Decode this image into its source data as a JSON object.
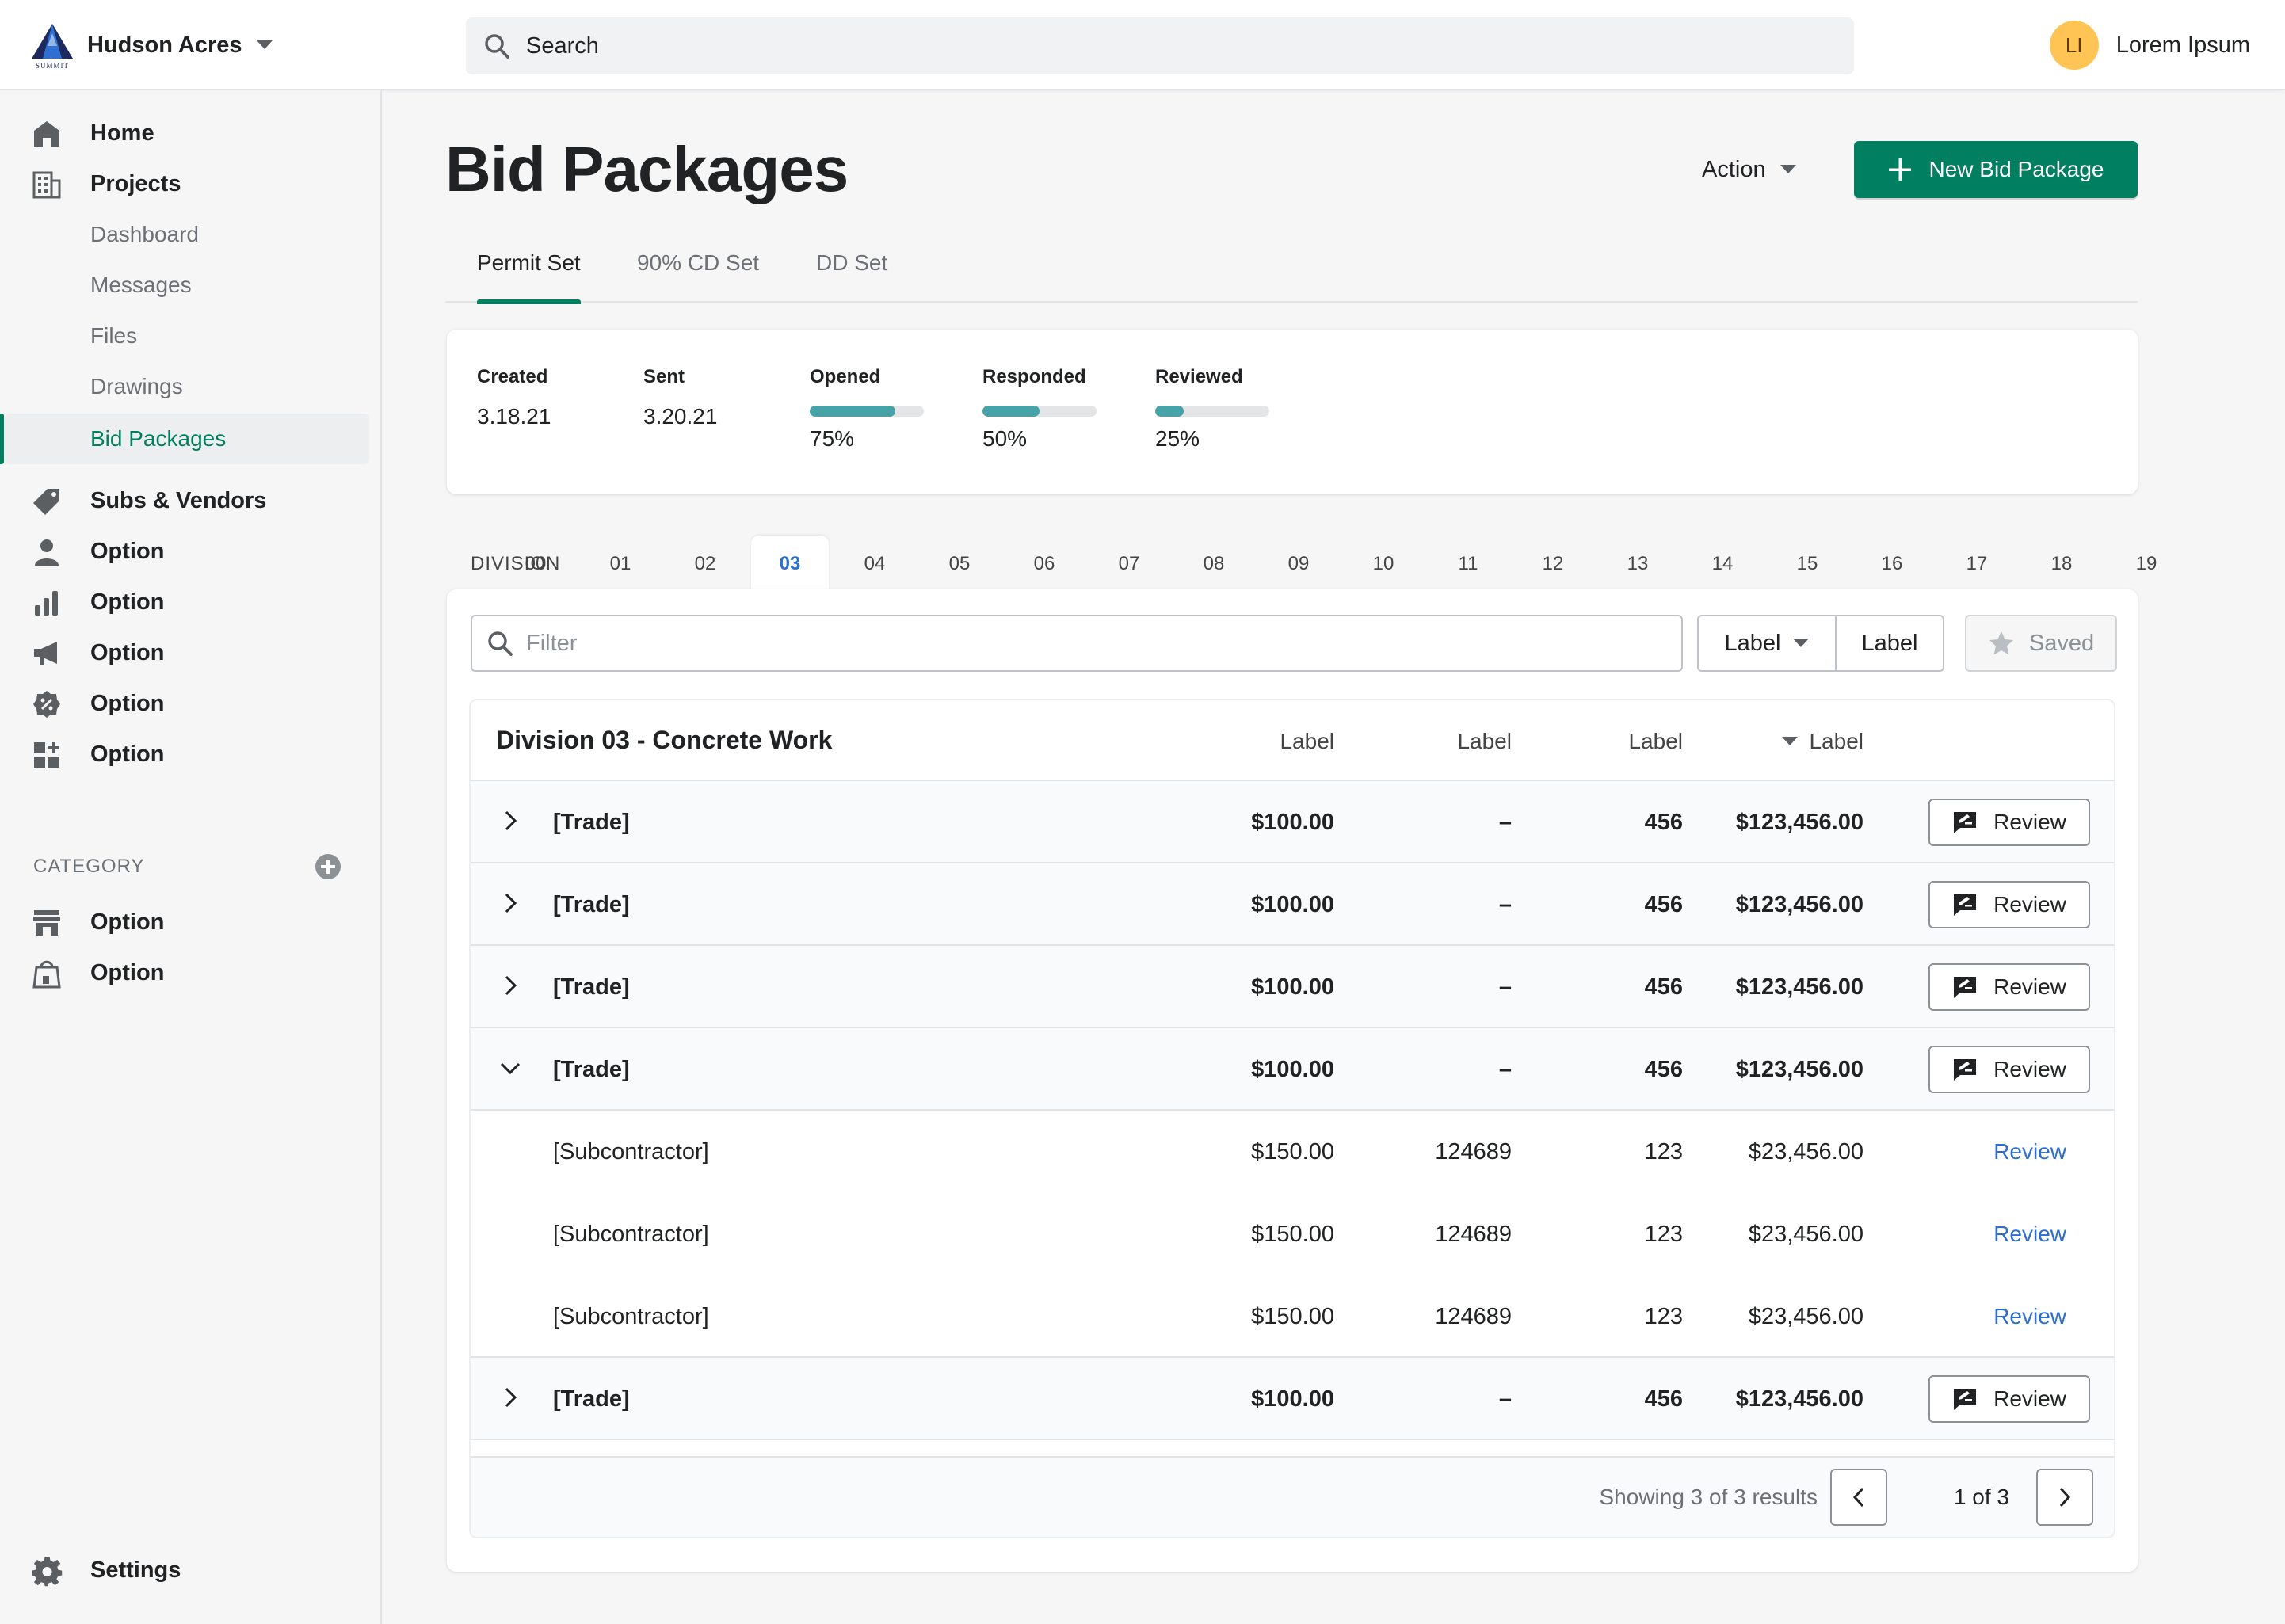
{
  "topbar": {
    "store_name": "Hudson Acres",
    "logo_word": "SUMMIT",
    "search_placeholder": "Search",
    "user_initials": "LI",
    "user_name": "Lorem Ipsum"
  },
  "sidebar": {
    "primary": [
      {
        "label": "Home",
        "icon": "home-icon"
      },
      {
        "label": "Projects",
        "icon": "building-icon"
      }
    ],
    "project_sub": [
      "Dashboard",
      "Messages",
      "Files",
      "Drawings",
      "Bid Packages"
    ],
    "active_sub": "Bid Packages",
    "secondary": [
      {
        "label": "Subs & Vendors",
        "icon": "tag-icon"
      },
      {
        "label": "Option",
        "icon": "person-icon"
      },
      {
        "label": "Option",
        "icon": "bar-chart-icon"
      },
      {
        "label": "Option",
        "icon": "megaphone-icon"
      },
      {
        "label": "Option",
        "icon": "discount-icon"
      },
      {
        "label": "Option",
        "icon": "apps-icon"
      }
    ],
    "category_label": "CATEGORY",
    "category_items": [
      {
        "label": "Option",
        "icon": "store-icon"
      },
      {
        "label": "Option",
        "icon": "shopping-bag-icon"
      }
    ],
    "settings_label": "Settings"
  },
  "page": {
    "title": "Bid Packages",
    "action_label": "Action",
    "new_button_label": "New Bid Package",
    "tabs": [
      "Permit Set",
      "90% CD Set",
      "DD Set"
    ],
    "active_tab": "Permit Set"
  },
  "stats": {
    "created_label": "Created",
    "created_value": "3.18.21",
    "sent_label": "Sent",
    "sent_value": "3.20.21",
    "opened_label": "Opened",
    "opened_value": "75%",
    "opened_fraction": 0.75,
    "responded_label": "Responded",
    "responded_value": "50%",
    "responded_fraction": 0.5,
    "reviewed_label": "Reviewed",
    "reviewed_value": "25%",
    "reviewed_fraction": 0.25,
    "bar_color": "#47a3a8"
  },
  "division": {
    "label": "DIVISION",
    "codes": [
      "00",
      "01",
      "02",
      "03",
      "04",
      "05",
      "06",
      "07",
      "08",
      "09",
      "10",
      "11",
      "12",
      "13",
      "14",
      "15",
      "16",
      "17",
      "18",
      "19"
    ],
    "active": "03"
  },
  "toolbar": {
    "filter_placeholder": "Filter",
    "label_dropdown": "Label",
    "label_button": "Label",
    "saved_label": "Saved"
  },
  "table": {
    "title": "Division 03 - Concrete Work",
    "headers": [
      "Label",
      "Label",
      "Label",
      "Label"
    ],
    "review_label": "Review",
    "rows": [
      {
        "type": "trade",
        "expanded": false,
        "name": "[Trade]",
        "c1": "$100.00",
        "c2": "–",
        "c3": "456",
        "c4": "$123,456.00"
      },
      {
        "type": "trade",
        "expanded": false,
        "name": "[Trade]",
        "c1": "$100.00",
        "c2": "–",
        "c3": "456",
        "c4": "$123,456.00"
      },
      {
        "type": "trade",
        "expanded": false,
        "name": "[Trade]",
        "c1": "$100.00",
        "c2": "–",
        "c3": "456",
        "c4": "$123,456.00"
      },
      {
        "type": "trade",
        "expanded": true,
        "name": "[Trade]",
        "c1": "$100.00",
        "c2": "–",
        "c3": "456",
        "c4": "$123,456.00"
      },
      {
        "type": "sub",
        "name": "[Subcontractor]",
        "c1": "$150.00",
        "c2": "124689",
        "c3": "123",
        "c4": "$23,456.00"
      },
      {
        "type": "sub",
        "name": "[Subcontractor]",
        "c1": "$150.00",
        "c2": "124689",
        "c3": "123",
        "c4": "$23,456.00"
      },
      {
        "type": "sub",
        "name": "[Subcontractor]",
        "c1": "$150.00",
        "c2": "124689",
        "c3": "123",
        "c4": "$23,456.00"
      },
      {
        "type": "trade",
        "expanded": false,
        "name": "[Trade]",
        "c1": "$100.00",
        "c2": "–",
        "c3": "456",
        "c4": "$123,456.00"
      }
    ],
    "results_text": "Showing 3 of 3 results",
    "page_info": "1 of 3"
  },
  "colors": {
    "primary": "#008060",
    "link": "#2c6ecb",
    "avatar": "#ffc453"
  }
}
